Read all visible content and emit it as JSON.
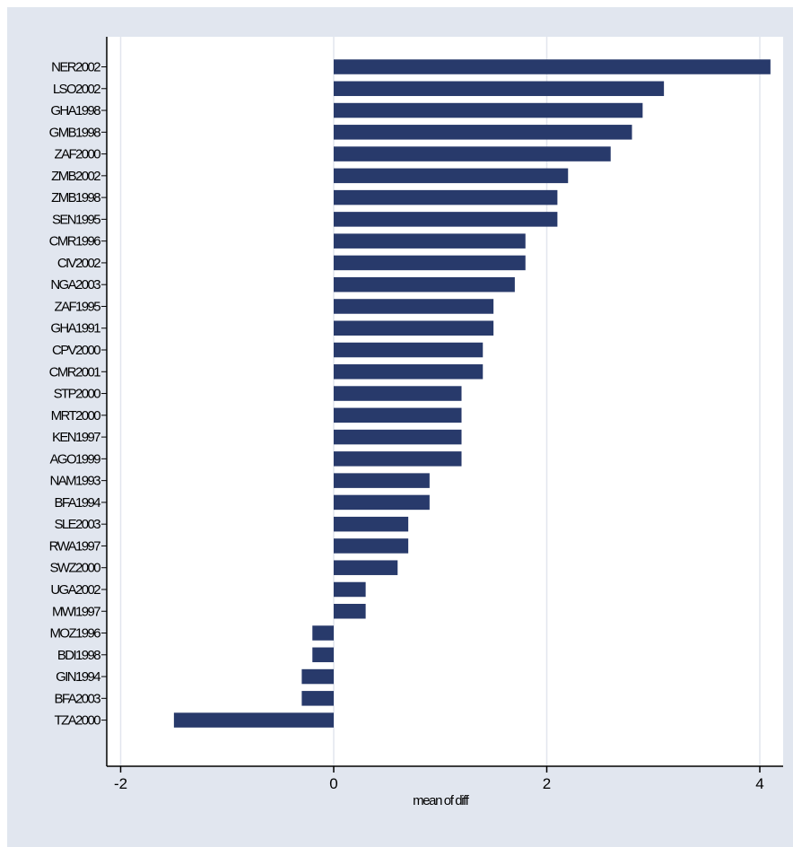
{
  "colors": {
    "background": "#e1e6ef",
    "plot_area": "#ffffff",
    "bar": "#283a6b",
    "gridline": "#e2e6ee",
    "axis": "#000000"
  },
  "chart_data": {
    "type": "bar",
    "orientation": "horizontal",
    "title": "",
    "xlabel": "mean of diff",
    "ylabel": "",
    "xlim": [
      -2.0,
      4.25
    ],
    "xticks": [
      -2,
      0,
      2,
      4
    ],
    "xtick_labels": [
      "-2",
      "0",
      "2",
      "4"
    ],
    "grid": true,
    "legend": "none",
    "categories": [
      "NER2002",
      "LSO2002",
      "GHA1998",
      "GMB1998",
      "ZAF2000",
      "ZMB2002",
      "ZMB1998",
      "SEN1995",
      "CMR1996",
      "CIV2002",
      "NGA2003",
      "ZAF1995",
      "GHA1991",
      "CPV2000",
      "CMR2001",
      "STP2000",
      "MRT2000",
      "KEN1997",
      "AGO1999",
      "NAM1993",
      "BFA1994",
      "SLE2003",
      "RWA1997",
      "SWZ2000",
      "UGA2002",
      "MWI1997",
      "MOZ1996",
      "BDI1998",
      "GIN1994",
      "BFA2003",
      "TZA2000"
    ],
    "values": [
      4.1,
      3.1,
      2.9,
      2.8,
      2.6,
      2.2,
      2.1,
      2.1,
      1.8,
      1.8,
      1.7,
      1.5,
      1.5,
      1.4,
      1.4,
      1.2,
      1.2,
      1.2,
      1.2,
      0.9,
      0.9,
      0.7,
      0.7,
      0.6,
      0.3,
      0.3,
      -0.2,
      -0.2,
      -0.3,
      -0.3,
      -1.5
    ]
  }
}
